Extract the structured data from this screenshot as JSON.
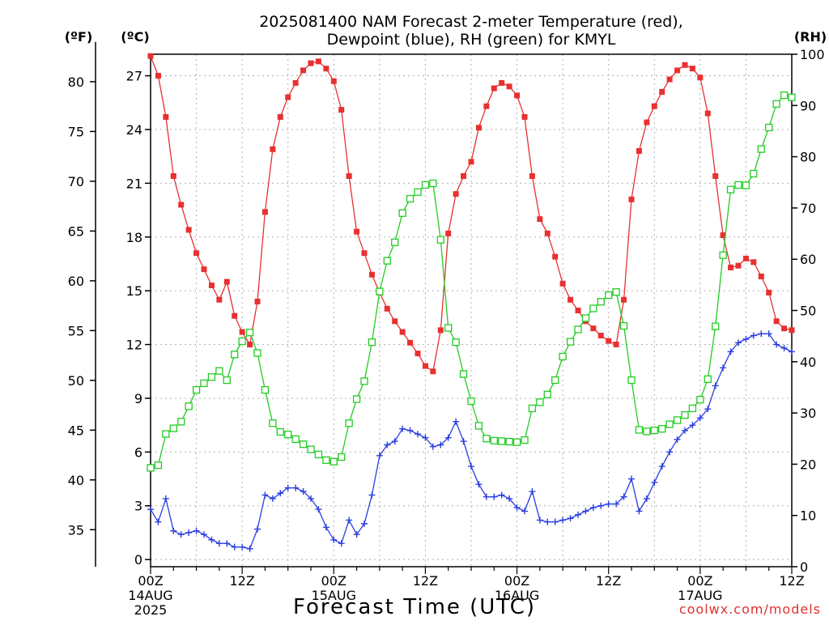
{
  "chart_data": {
    "type": "line",
    "title": "2025081400 NAM Forecast 2-meter Temperature (red),",
    "subtitle": "Dewpoint (blue), RH (green) for KMYL",
    "xlabel": "Forecast Time (UTC)",
    "credit": "coolwx.com/models",
    "units": {
      "fahrenheit": "(ºF)",
      "celsius": "(ºC)",
      "rh": "(RH)"
    },
    "y_celsius": {
      "range": [
        -0.4,
        28.2
      ],
      "ticks": [
        "0",
        "3",
        "6",
        "9",
        "12",
        "15",
        "18",
        "21",
        "24",
        "27"
      ]
    },
    "y_fahrenheit": {
      "ticks": [
        "35",
        "40",
        "45",
        "50",
        "55",
        "60",
        "65",
        "70",
        "75",
        "80"
      ]
    },
    "y_rh": {
      "range": [
        0,
        100
      ],
      "ticks": [
        "0",
        "10",
        "20",
        "30",
        "40",
        "50",
        "60",
        "70",
        "80",
        "90",
        "100"
      ]
    },
    "x_hours_range": [
      0,
      84
    ],
    "x_ticks": [
      {
        "label": "00Z",
        "sub1": "14AUG",
        "sub2": "2025"
      },
      {
        "label": "12Z",
        "sub1": "",
        "sub2": ""
      },
      {
        "label": "00Z",
        "sub1": "15AUG",
        "sub2": ""
      },
      {
        "label": "12Z",
        "sub1": "",
        "sub2": ""
      },
      {
        "label": "00Z",
        "sub1": "16AUG",
        "sub2": ""
      },
      {
        "label": "12Z",
        "sub1": "",
        "sub2": ""
      },
      {
        "label": "00Z",
        "sub1": "17AUG",
        "sub2": ""
      },
      {
        "label": "12Z",
        "sub1": "",
        "sub2": ""
      }
    ],
    "x_tick_hours": [
      0,
      12,
      24,
      36,
      48,
      60,
      72,
      84
    ],
    "grid": true,
    "series": [
      {
        "name": "2-meter Temperature",
        "unit": "°C",
        "color": "#e83030",
        "marker": "filled-square",
        "x": [
          0,
          1,
          2,
          3,
          4,
          5,
          6,
          7,
          8,
          9,
          10,
          11,
          12,
          13,
          14,
          15,
          16,
          17,
          18,
          19,
          20,
          21,
          22,
          23,
          24,
          25,
          26,
          27,
          28,
          29,
          30,
          31,
          32,
          33,
          34,
          35,
          36,
          37,
          38,
          39,
          40,
          41,
          42,
          43,
          44,
          45,
          46,
          47,
          48,
          49,
          50,
          51,
          52,
          53,
          54,
          55,
          56,
          57,
          58,
          59,
          60,
          61,
          62,
          63,
          64,
          65,
          66,
          67,
          68,
          69,
          70,
          71,
          72,
          73,
          74,
          75,
          76,
          77,
          78,
          79,
          80,
          81,
          82,
          83,
          84
        ],
        "values": [
          28.1,
          27.0,
          24.7,
          21.4,
          19.8,
          18.4,
          17.1,
          16.2,
          15.3,
          14.5,
          15.5,
          13.6,
          12.7,
          12.0,
          14.4,
          19.4,
          22.9,
          24.7,
          25.8,
          26.6,
          27.3,
          27.7,
          27.8,
          27.4,
          26.7,
          25.1,
          21.4,
          18.3,
          17.1,
          15.9,
          14.9,
          14.0,
          13.3,
          12.7,
          12.1,
          11.5,
          10.8,
          10.5,
          12.8,
          18.2,
          20.4,
          21.4,
          22.2,
          24.1,
          25.3,
          26.3,
          26.6,
          26.4,
          25.9,
          24.7,
          21.4,
          19.0,
          18.2,
          16.9,
          15.4,
          14.5,
          13.9,
          13.3,
          12.9,
          12.5,
          12.2,
          12.0,
          14.5,
          20.1,
          22.8,
          24.4,
          25.3,
          26.1,
          26.8,
          27.3,
          27.6,
          27.4,
          26.9,
          24.9,
          21.4,
          18.1,
          16.3,
          16.4,
          16.8,
          16.6,
          15.8,
          14.9,
          13.3,
          12.9,
          12.8
        ]
      },
      {
        "name": "Dewpoint",
        "unit": "°C",
        "color": "#2a3fe0",
        "marker": "plus",
        "x": [
          0,
          1,
          2,
          3,
          4,
          5,
          6,
          7,
          8,
          9,
          10,
          11,
          12,
          13,
          14,
          15,
          16,
          17,
          18,
          19,
          20,
          21,
          22,
          23,
          24,
          25,
          26,
          27,
          28,
          29,
          30,
          31,
          32,
          33,
          34,
          35,
          36,
          37,
          38,
          39,
          40,
          41,
          42,
          43,
          44,
          45,
          46,
          47,
          48,
          49,
          50,
          51,
          52,
          53,
          54,
          55,
          56,
          57,
          58,
          59,
          60,
          61,
          62,
          63,
          64,
          65,
          66,
          67,
          68,
          69,
          70,
          71,
          72,
          73,
          74,
          75,
          76,
          77,
          78,
          79,
          80,
          81,
          82,
          83,
          84
        ],
        "values": [
          2.8,
          2.1,
          3.4,
          1.6,
          1.4,
          1.5,
          1.6,
          1.4,
          1.1,
          0.9,
          0.9,
          0.7,
          0.7,
          0.6,
          1.7,
          3.6,
          3.4,
          3.7,
          4.0,
          4.0,
          3.8,
          3.4,
          2.8,
          1.8,
          1.1,
          0.9,
          2.2,
          1.4,
          2.0,
          3.6,
          5.8,
          6.4,
          6.6,
          7.3,
          7.2,
          7.0,
          6.8,
          6.3,
          6.4,
          6.8,
          7.7,
          6.6,
          5.2,
          4.2,
          3.5,
          3.5,
          3.6,
          3.4,
          2.9,
          2.7,
          3.8,
          2.2,
          2.1,
          2.1,
          2.2,
          2.3,
          2.5,
          2.7,
          2.9,
          3.0,
          3.1,
          3.1,
          3.5,
          4.5,
          2.7,
          3.4,
          4.3,
          5.2,
          6.0,
          6.7,
          7.2,
          7.5,
          7.9,
          8.4,
          9.7,
          10.7,
          11.6,
          12.1,
          12.3,
          12.5,
          12.6,
          12.6,
          12.0,
          11.8,
          11.6
        ]
      },
      {
        "name": "RH",
        "unit": "%",
        "color": "#22cc22",
        "marker": "open-square",
        "axis": "right",
        "x": [
          0,
          1,
          2,
          3,
          4,
          5,
          6,
          7,
          8,
          9,
          10,
          11,
          12,
          13,
          14,
          15,
          16,
          17,
          18,
          19,
          20,
          21,
          22,
          23,
          24,
          25,
          26,
          27,
          28,
          29,
          30,
          31,
          32,
          33,
          34,
          35,
          36,
          37,
          38,
          39,
          40,
          41,
          42,
          43,
          44,
          45,
          46,
          47,
          48,
          49,
          50,
          51,
          52,
          53,
          54,
          55,
          56,
          57,
          58,
          59,
          60,
          61,
          62,
          63,
          64,
          65,
          66,
          67,
          68,
          69,
          70,
          71,
          72,
          73,
          74,
          75,
          76,
          77,
          78,
          79,
          80,
          81,
          82,
          83,
          84
        ],
        "values": [
          19.3,
          19.8,
          25.9,
          27.0,
          28.3,
          31.3,
          34.5,
          35.8,
          37.0,
          38.2,
          36.4,
          41.4,
          44.0,
          45.7,
          41.7,
          34.5,
          28.0,
          26.3,
          25.8,
          24.9,
          23.9,
          22.9,
          21.9,
          20.8,
          20.5,
          21.4,
          28.0,
          32.7,
          36.2,
          43.8,
          53.7,
          59.7,
          63.3,
          69.0,
          71.8,
          73.1,
          74.5,
          74.8,
          63.8,
          46.6,
          43.8,
          37.6,
          32.3,
          27.5,
          25.0,
          24.6,
          24.5,
          24.4,
          24.3,
          24.7,
          30.9,
          32.1,
          33.6,
          36.4,
          41.0,
          43.9,
          46.3,
          48.5,
          50.4,
          51.7,
          53.0,
          53.6,
          47.0,
          36.4,
          26.7,
          26.4,
          26.6,
          26.9,
          27.8,
          28.6,
          29.6,
          30.9,
          32.6,
          36.6,
          46.9,
          60.8,
          73.6,
          74.5,
          74.4,
          76.7,
          81.5,
          85.7,
          90.3,
          92.0,
          91.6
        ]
      }
    ]
  }
}
